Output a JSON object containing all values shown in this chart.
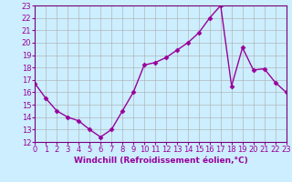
{
  "x": [
    0,
    1,
    2,
    3,
    4,
    5,
    6,
    7,
    8,
    9,
    10,
    11,
    12,
    13,
    14,
    15,
    16,
    17,
    18,
    19,
    20,
    21,
    22,
    23
  ],
  "y": [
    16.7,
    15.5,
    14.5,
    14.0,
    13.7,
    13.0,
    12.4,
    13.0,
    14.5,
    16.0,
    18.2,
    18.4,
    18.8,
    19.4,
    20.0,
    20.8,
    22.0,
    23.0,
    16.5,
    19.6,
    17.8,
    17.9,
    16.8,
    16.0
  ],
  "color": "#990099",
  "bg_color": "#cceeff",
  "xlabel": "Windchill (Refroidissement éolien,°C)",
  "ylim": [
    12,
    23
  ],
  "xlim": [
    0,
    23
  ],
  "yticks": [
    12,
    13,
    14,
    15,
    16,
    17,
    18,
    19,
    20,
    21,
    22,
    23
  ],
  "xticks": [
    0,
    1,
    2,
    3,
    4,
    5,
    6,
    7,
    8,
    9,
    10,
    11,
    12,
    13,
    14,
    15,
    16,
    17,
    18,
    19,
    20,
    21,
    22,
    23
  ],
  "grid_color": "#aaaaaa",
  "marker": "D",
  "markersize": 2.5,
  "linewidth": 1.0,
  "xlabel_fontsize": 6.5,
  "tick_fontsize": 6,
  "spine_color": "#770077"
}
